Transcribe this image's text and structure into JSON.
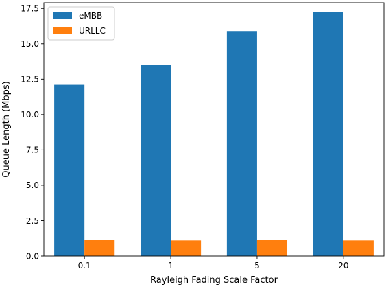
{
  "chart_data": {
    "type": "bar",
    "categories": [
      "0.1",
      "1",
      "5",
      "20"
    ],
    "series": [
      {
        "name": "eMBB",
        "color": "#1f77b4",
        "values": [
          12.1,
          13.5,
          15.9,
          17.25
        ]
      },
      {
        "name": "URLLC",
        "color": "#ff7f0e",
        "values": [
          1.15,
          1.1,
          1.15,
          1.1
        ]
      }
    ],
    "xlabel": "Rayleigh Fading Scale Factor",
    "ylabel": "Queue Length (Mbps)",
    "ylim": [
      0,
      17.9
    ],
    "yticks": [
      "0.0",
      "2.5",
      "5.0",
      "7.5",
      "10.0",
      "12.5",
      "15.0",
      "17.5"
    ],
    "grid": false,
    "legend_position": "top-left"
  }
}
